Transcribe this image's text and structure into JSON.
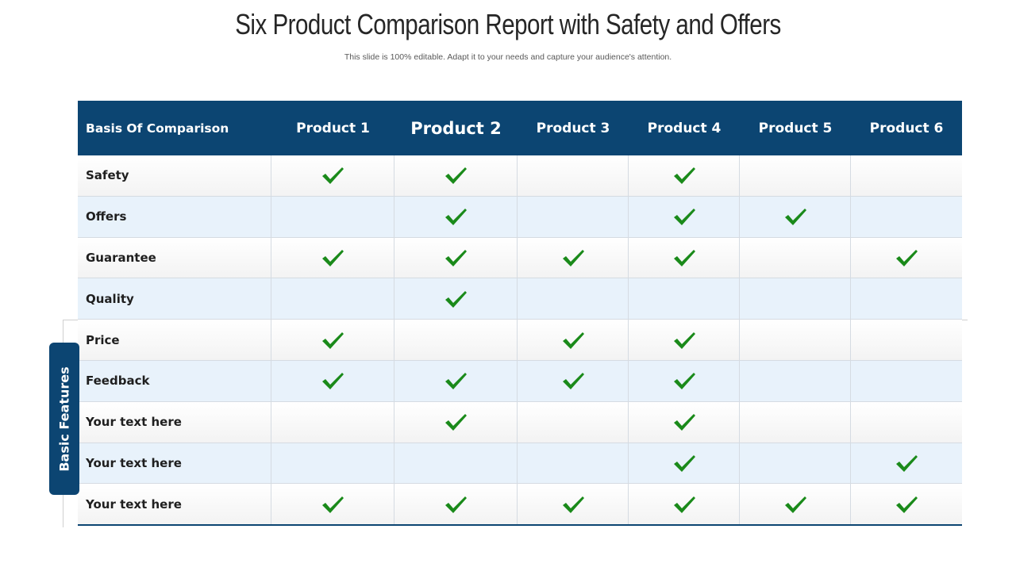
{
  "title": "Six Product Comparison Report with Safety and Offers",
  "subtitle": "This slide is 100% editable. Adapt it to your needs and capture  your audience's attention.",
  "side_label": "Basic Features",
  "colors": {
    "header_bg": "#0c4572",
    "check": "#1a8a1a",
    "row_alt": "#e8f2fb"
  },
  "table": {
    "headers": [
      "Basis Of Comparison",
      "Product 1",
      "Product 2",
      "Product 3",
      "Product 4",
      "Product 5",
      "Product 6"
    ],
    "rows": [
      {
        "label": "Safety",
        "checks": [
          true,
          true,
          false,
          true,
          false,
          false
        ]
      },
      {
        "label": "Offers",
        "checks": [
          false,
          true,
          false,
          true,
          true,
          false
        ]
      },
      {
        "label": "Guarantee",
        "checks": [
          true,
          true,
          true,
          true,
          false,
          true
        ]
      },
      {
        "label": "Quality",
        "checks": [
          false,
          true,
          false,
          false,
          false,
          false
        ]
      },
      {
        "label": "Price",
        "checks": [
          true,
          false,
          true,
          true,
          false,
          false
        ]
      },
      {
        "label": "Feedback",
        "checks": [
          true,
          true,
          true,
          true,
          false,
          false
        ]
      },
      {
        "label": "Your text here",
        "checks": [
          false,
          true,
          false,
          true,
          false,
          false
        ]
      },
      {
        "label": "Your text here",
        "checks": [
          false,
          false,
          false,
          true,
          false,
          true
        ]
      },
      {
        "label": "Your text here",
        "checks": [
          true,
          true,
          true,
          true,
          true,
          true
        ]
      }
    ]
  }
}
